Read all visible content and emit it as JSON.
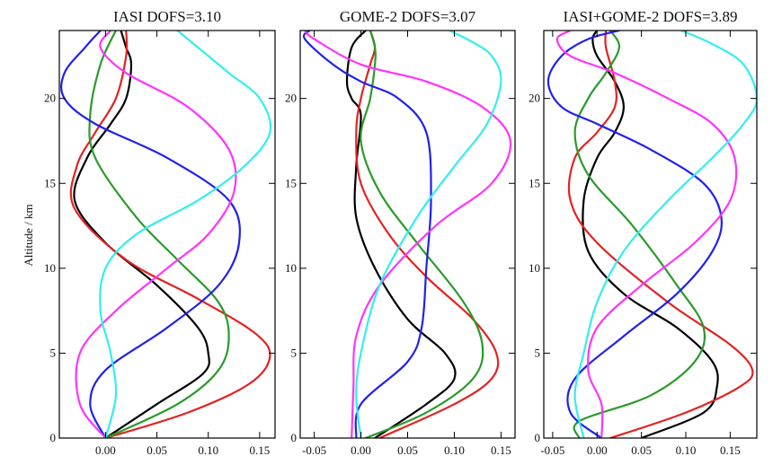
{
  "chart_data": [
    {
      "type": "line",
      "title": "IASI DOFS=3.10",
      "ylabel": "Altitude / km",
      "xlim": [
        -0.045,
        0.165
      ],
      "ylim": [
        0,
        24
      ],
      "xticks": [
        "0.00",
        "0.05",
        "0.10",
        "0.15"
      ],
      "xtick_values": [
        0.0,
        0.05,
        0.1,
        0.15
      ],
      "yticks": [
        "0",
        "5",
        "10",
        "15",
        "20"
      ],
      "ytick_values": [
        0,
        5,
        10,
        15,
        20
      ],
      "series": [
        {
          "color": "#000000",
          "x": [
            0.0,
            0.05,
            0.095,
            0.1,
            0.09,
            0.05,
            0.0,
            -0.03,
            -0.018,
            0.005,
            0.02,
            0.025,
            0.02,
            0.015
          ],
          "y": [
            0,
            2,
            3.8,
            5,
            6.5,
            9,
            11.5,
            14,
            16.5,
            18.5,
            20,
            22,
            23,
            24
          ]
        },
        {
          "color": "#e32222",
          "x": [
            0.0,
            0.08,
            0.14,
            0.16,
            0.145,
            0.09,
            0.02,
            -0.03,
            -0.028,
            -0.01,
            0.01,
            0.02,
            0.02
          ],
          "y": [
            0,
            1.5,
            3.2,
            4.8,
            6.2,
            8.2,
            10.5,
            13.5,
            16,
            18,
            20,
            22.5,
            24
          ]
        },
        {
          "color": "#2a9a2a",
          "x": [
            0.0,
            0.07,
            0.11,
            0.12,
            0.11,
            0.07,
            0.03,
            -0.01,
            -0.015,
            -0.005,
            0.01
          ],
          "y": [
            0,
            2,
            4,
            6,
            8,
            10.5,
            13,
            16.5,
            19,
            22,
            24
          ]
        },
        {
          "color": "#2020ee",
          "x": [
            0.0,
            -0.015,
            0.0,
            0.06,
            0.11,
            0.13,
            0.12,
            0.06,
            -0.01,
            -0.04,
            -0.04,
            -0.02,
            -0.005
          ],
          "y": [
            0,
            2,
            4,
            6.5,
            9,
            11.5,
            14,
            16.5,
            18.5,
            20,
            21.5,
            23,
            24
          ]
        },
        {
          "color": "#ff33ff",
          "x": [
            0.0,
            -0.025,
            -0.025,
            0.01,
            0.06,
            0.1,
            0.125,
            0.12,
            0.08,
            0.02,
            -0.005,
            0.005
          ],
          "y": [
            0,
            2,
            5,
            7.5,
            10,
            12,
            14.5,
            17,
            19.5,
            21.5,
            23,
            24
          ]
        },
        {
          "color": "#33eeee",
          "x": [
            0.0,
            0.01,
            0.005,
            -0.005,
            0.0,
            0.03,
            0.09,
            0.135,
            0.16,
            0.15,
            0.12,
            0.09,
            0.07
          ],
          "y": [
            0,
            2.5,
            5,
            7.5,
            10,
            12,
            14,
            16,
            18,
            20,
            21.5,
            23,
            24
          ]
        }
      ]
    },
    {
      "type": "line",
      "title": "GOME-2 DOFS=3.07",
      "xlim": [
        -0.065,
        0.165
      ],
      "ylim": [
        0,
        24
      ],
      "xticks": [
        "-0.05",
        "0.00",
        "0.05",
        "0.10",
        "0.15"
      ],
      "xtick_values": [
        -0.05,
        0.0,
        0.05,
        0.1,
        0.15
      ],
      "yticks": [
        "0",
        "5",
        "10",
        "15",
        "20"
      ],
      "ytick_values": [
        0,
        5,
        10,
        15,
        20
      ],
      "series": [
        {
          "color": "#000000",
          "x": [
            0.015,
            0.07,
            0.1,
            0.09,
            0.05,
            0.015,
            -0.005,
            -0.005,
            0.0,
            -0.01,
            -0.015,
            -0.01,
            0.005
          ],
          "y": [
            0,
            2,
            3.5,
            5,
            7,
            10,
            13,
            16,
            19,
            20,
            21,
            23,
            24
          ]
        },
        {
          "color": "#e32222",
          "x": [
            0.02,
            0.1,
            0.14,
            0.145,
            0.12,
            0.07,
            0.03,
            0.0,
            -0.005,
            0.0,
            0.01,
            0.015,
            0.01
          ],
          "y": [
            0,
            2,
            3.5,
            5,
            7,
            9.5,
            12,
            15,
            18,
            20,
            22,
            23,
            24
          ]
        },
        {
          "color": "#2a9a2a",
          "x": [
            0.005,
            0.07,
            0.12,
            0.13,
            0.11,
            0.06,
            0.02,
            0.0,
            0.01,
            0.015,
            0.015,
            0.01
          ],
          "y": [
            0,
            1.5,
            3.5,
            5.5,
            8,
            11.5,
            14.5,
            17.5,
            20,
            22,
            23,
            24
          ]
        },
        {
          "color": "#2020ee",
          "x": [
            -0.005,
            0.0,
            0.05,
            0.065,
            0.07,
            0.075,
            0.07,
            0.04,
            0.0,
            -0.03,
            -0.06,
            -0.055
          ],
          "y": [
            0,
            2,
            4.5,
            6.5,
            10,
            14,
            18,
            20,
            21,
            22,
            23.5,
            24
          ]
        },
        {
          "color": "#ff33ff",
          "x": [
            -0.01,
            -0.008,
            -0.005,
            0.02,
            0.08,
            0.14,
            0.16,
            0.13,
            0.07,
            0.0,
            -0.05,
            -0.06
          ],
          "y": [
            0,
            3,
            6,
            9,
            12.5,
            15,
            17.5,
            19.5,
            21,
            22,
            23.5,
            24
          ]
        },
        {
          "color": "#33eeee",
          "x": [
            0.0,
            -0.005,
            0.0,
            0.02,
            0.06,
            0.1,
            0.135,
            0.15,
            0.14,
            0.12,
            0.095
          ],
          "y": [
            0,
            2.5,
            5,
            9,
            13,
            16,
            18.5,
            21,
            22.5,
            23.3,
            24
          ]
        }
      ]
    },
    {
      "type": "line",
      "title": "IASI+GOME-2 DOFS=3.89",
      "xlim": [
        -0.06,
        0.18
      ],
      "ylim": [
        0,
        24
      ],
      "xticks": [
        "-0.05",
        "0.00",
        "0.05",
        "0.10",
        "0.15"
      ],
      "xtick_values": [
        -0.05,
        0.0,
        0.05,
        0.1,
        0.15
      ],
      "yticks": [
        "0",
        "5",
        "10",
        "15",
        "20"
      ],
      "ytick_values": [
        0,
        5,
        10,
        15,
        20
      ],
      "series": [
        {
          "color": "#000000",
          "x": [
            0.05,
            0.12,
            0.135,
            0.13,
            0.09,
            0.03,
            -0.01,
            -0.015,
            0.0,
            0.02,
            0.03,
            0.02,
            0.0,
            -0.005,
            0.0
          ],
          "y": [
            0,
            1.5,
            3,
            4.5,
            6.5,
            8.5,
            11,
            14,
            16.5,
            18,
            19.5,
            21,
            22.5,
            23.5,
            24
          ]
        },
        {
          "color": "#e32222",
          "x": [
            0.015,
            0.1,
            0.16,
            0.175,
            0.15,
            0.08,
            0.0,
            -0.03,
            -0.025,
            0.0,
            0.02,
            0.02,
            0.01,
            0.01
          ],
          "y": [
            0,
            1.5,
            3,
            4,
            5.5,
            8,
            11.5,
            14,
            16.5,
            18,
            19.5,
            21,
            23,
            24
          ]
        },
        {
          "color": "#2a9a2a",
          "x": [
            -0.02,
            -0.02,
            0.06,
            0.11,
            0.12,
            0.09,
            0.04,
            -0.01,
            -0.025,
            -0.01,
            0.01,
            0.025,
            0.015
          ],
          "y": [
            0,
            1,
            2.5,
            4.5,
            6.5,
            9,
            12.5,
            15.5,
            18,
            20,
            21.5,
            23,
            24
          ]
        },
        {
          "color": "#2020ee",
          "x": [
            0.005,
            -0.03,
            -0.025,
            0.03,
            0.09,
            0.13,
            0.14,
            0.12,
            0.06,
            0.0,
            -0.04,
            -0.055,
            -0.04,
            -0.01,
            0.025
          ],
          "y": [
            0,
            1.5,
            3.5,
            6,
            8.5,
            11,
            13,
            15,
            17,
            18.5,
            19.5,
            21,
            22.5,
            23.5,
            24
          ]
        },
        {
          "color": "#ff33ff",
          "x": [
            0.005,
            0.005,
            -0.01,
            0.0,
            0.05,
            0.11,
            0.15,
            0.155,
            0.13,
            0.08,
            0.02,
            -0.03,
            -0.045,
            -0.03
          ],
          "y": [
            0,
            2,
            4,
            6.5,
            9,
            11.5,
            14,
            16.5,
            18.5,
            20,
            21.5,
            22.5,
            23.5,
            24
          ]
        },
        {
          "color": "#33eeee",
          "x": [
            -0.015,
            -0.025,
            -0.015,
            0.0,
            0.03,
            0.08,
            0.13,
            0.165,
            0.18,
            0.165,
            0.13,
            0.095
          ],
          "y": [
            0,
            2.5,
            5,
            8,
            11,
            14,
            16.5,
            18.5,
            20,
            22,
            23.2,
            24
          ]
        }
      ]
    }
  ]
}
